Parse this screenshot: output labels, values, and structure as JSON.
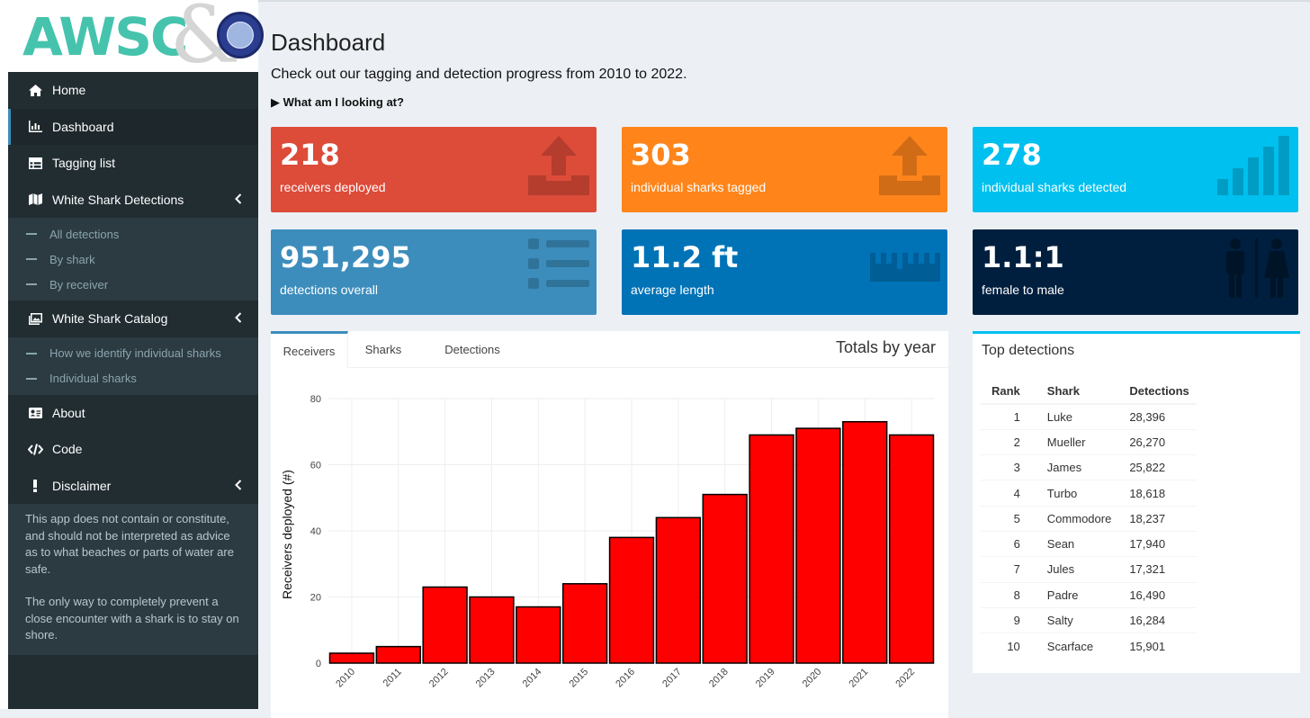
{
  "brand": {
    "logo_text": "AWSC",
    "logo_amp": "&"
  },
  "nav": {
    "home": "Home",
    "dashboard": "Dashboard",
    "tagging_list": "Tagging list",
    "detections": "White Shark Detections",
    "detections_sub": [
      "All detections",
      "By shark",
      "By receiver"
    ],
    "catalog": "White Shark Catalog",
    "catalog_sub": [
      "How we identify individual sharks",
      "Individual sharks"
    ],
    "about": "About",
    "code": "Code",
    "disclaimer": "Disclaimer",
    "disclaimer_text": [
      "This app does not contain or constitute, and should not be interpreted as advice as to what beaches or parts of water are safe.",
      "The only way to completely prevent a close encounter with a shark is to stay on shore."
    ]
  },
  "page": {
    "title": "Dashboard",
    "subtitle": "Check out our tagging and detection progress from 2010 to 2022.",
    "details_label": "▶ What am I looking at?"
  },
  "value_boxes": [
    {
      "value": "218",
      "label": "receivers deployed",
      "color": "#dd4b39",
      "icon": "upload-tray-icon"
    },
    {
      "value": "303",
      "label": "individual sharks tagged",
      "color": "#ff851b",
      "icon": "upload-tray-icon"
    },
    {
      "value": "278",
      "label": "individual sharks detected",
      "color": "#00c0ef",
      "icon": "signal-bars-icon"
    },
    {
      "value": "951,295",
      "label": "detections overall",
      "color": "#3c8dbc",
      "icon": "list-icon"
    },
    {
      "value": "11.2 ft",
      "label": "average length",
      "color": "#0073b7",
      "icon": "ruler-icon"
    },
    {
      "value": "1.1:1",
      "label": "female to male",
      "color": "#001f3f",
      "icon": "restroom-icon"
    }
  ],
  "chart_box": {
    "tabs": [
      "Receivers",
      "Sharks",
      "Detections"
    ],
    "active_tab": "Receivers",
    "title": "Totals by year"
  },
  "chart_data": {
    "type": "bar",
    "categories": [
      "2010",
      "2011",
      "2012",
      "2013",
      "2014",
      "2015",
      "2016",
      "2017",
      "2018",
      "2019",
      "2020",
      "2021",
      "2022"
    ],
    "values": [
      3,
      5,
      23,
      20,
      17,
      24,
      38,
      44,
      51,
      69,
      71,
      73,
      69
    ],
    "ylabel": "Receivers deployed (#)",
    "xlabel": "",
    "ylim": [
      0,
      80
    ],
    "yticks": [
      0,
      20,
      40,
      60,
      80
    ],
    "bar_color": "#ff0000",
    "grid": true
  },
  "top_detections": {
    "title": "Top detections",
    "columns": [
      "Rank",
      "Shark",
      "Detections"
    ],
    "rows": [
      [
        "1",
        "Luke",
        "28,396"
      ],
      [
        "2",
        "Mueller",
        "26,270"
      ],
      [
        "3",
        "James",
        "25,822"
      ],
      [
        "4",
        "Turbo",
        "18,618"
      ],
      [
        "5",
        "Commodore",
        "18,237"
      ],
      [
        "6",
        "Sean",
        "17,940"
      ],
      [
        "7",
        "Jules",
        "17,321"
      ],
      [
        "8",
        "Padre",
        "16,490"
      ],
      [
        "9",
        "Salty",
        "16,284"
      ],
      [
        "10",
        "Scarface",
        "15,901"
      ]
    ]
  }
}
